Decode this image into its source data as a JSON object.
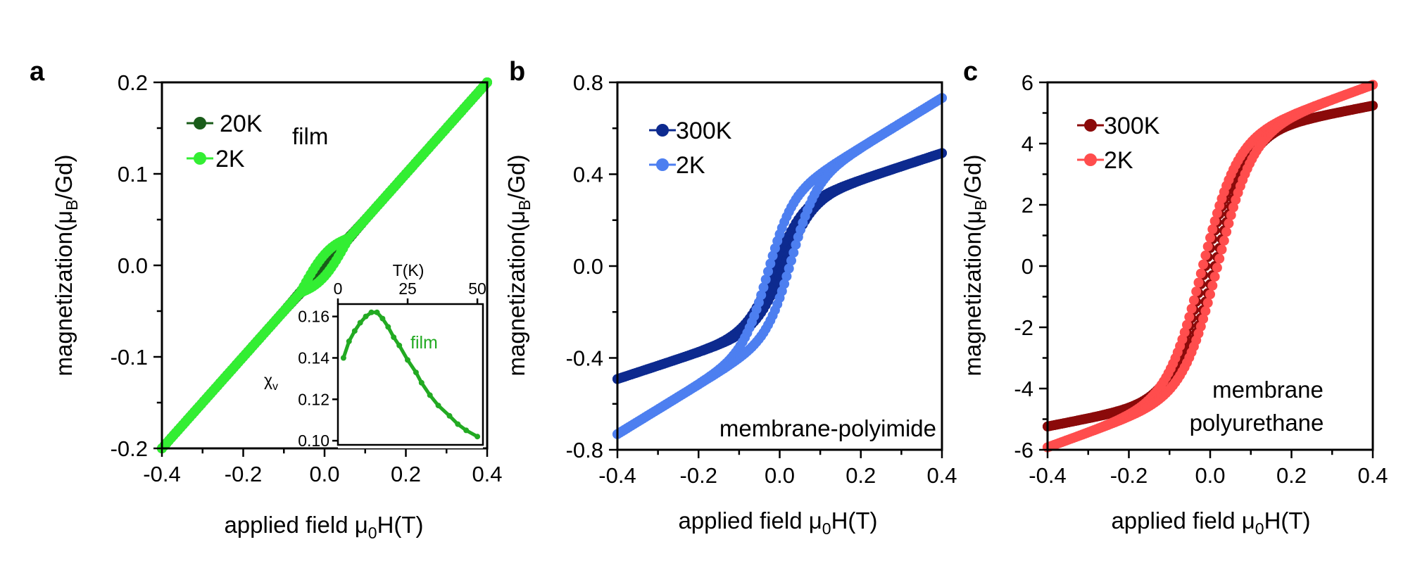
{
  "figure": {
    "panels": [
      "a",
      "b",
      "c"
    ]
  },
  "chart_data": [
    {
      "id": "a",
      "type": "scatter",
      "panel_label": "a",
      "xlabel": "applied field μ0H(T)",
      "ylabel": "magnetization(μB/Gd)",
      "xlim": [
        -0.4,
        0.4
      ],
      "ylim": [
        -0.2,
        0.2
      ],
      "xticks": [
        -0.4,
        -0.2,
        0.0,
        0.2,
        0.4
      ],
      "xtick_labels": [
        "-0.4",
        "-0.2",
        "0.0",
        "0.2",
        "0.4"
      ],
      "yticks": [
        -0.2,
        -0.1,
        0.0,
        0.1,
        0.2
      ],
      "ytick_labels": [
        "-0.2",
        "-0.1",
        "0.0",
        "0.1",
        "0.2"
      ],
      "annotation": "film",
      "legend_position": "top-left",
      "series": [
        {
          "name": "20K",
          "color": "#1a5c1a",
          "kind": "linear",
          "slope": 0.5,
          "hys_coercive": 0.0,
          "loop_offset": 0.003,
          "x": [
            -0.4,
            -0.3,
            -0.2,
            -0.1,
            0.0,
            0.1,
            0.2,
            0.3,
            0.4
          ],
          "y": [
            -0.2,
            -0.15,
            -0.1,
            -0.05,
            0.0,
            0.05,
            0.1,
            0.15,
            0.2
          ]
        },
        {
          "name": "2K",
          "color": "#33ee33",
          "kind": "linear",
          "slope": 0.5,
          "hys_coercive": 0.04,
          "loop_offset": 0.0,
          "x": [
            -0.4,
            -0.3,
            -0.2,
            -0.1,
            0.0,
            0.1,
            0.2,
            0.3,
            0.4
          ],
          "y": [
            -0.2,
            -0.15,
            -0.1,
            -0.05,
            0.0,
            0.05,
            0.1,
            0.15,
            0.2
          ]
        }
      ],
      "inset": {
        "type": "line",
        "xlabel": "T(K)",
        "ylabel": "χv",
        "annotation": "film",
        "color": "#22aa22",
        "xlim": [
          0,
          52
        ],
        "ylim": [
          0.098,
          0.166
        ],
        "xticks": [
          0,
          25,
          50
        ],
        "xtick_labels": [
          "0",
          "25",
          "50"
        ],
        "yticks": [
          0.1,
          0.12,
          0.14,
          0.16
        ],
        "ytick_labels": [
          "0.10",
          "0.12",
          "0.14",
          "0.16"
        ],
        "x": [
          2,
          4,
          6,
          8,
          10,
          12,
          14,
          16,
          18,
          20,
          22,
          25,
          28,
          30,
          33,
          36,
          40,
          43,
          46,
          50
        ],
        "y": [
          0.14,
          0.148,
          0.153,
          0.157,
          0.16,
          0.162,
          0.162,
          0.159,
          0.155,
          0.15,
          0.146,
          0.139,
          0.133,
          0.128,
          0.122,
          0.117,
          0.112,
          0.108,
          0.105,
          0.102
        ]
      }
    },
    {
      "id": "b",
      "type": "scatter",
      "panel_label": "b",
      "xlabel": "applied field μ0H(T)",
      "ylabel": "magnetization(μB/Gd)",
      "xlim": [
        -0.4,
        0.4
      ],
      "ylim": [
        -0.8,
        0.8
      ],
      "xticks": [
        -0.4,
        -0.2,
        0.0,
        0.2,
        0.4
      ],
      "xtick_labels": [
        "-0.4",
        "-0.2",
        "0.0",
        "0.2",
        "0.4"
      ],
      "yticks": [
        -0.8,
        -0.4,
        0.0,
        0.4,
        0.8
      ],
      "ytick_labels": [
        "-0.8",
        "-0.4",
        "0.0",
        "0.4",
        "0.8"
      ],
      "annotation": "membrane-polyimide",
      "legend_position": "top-left",
      "series": [
        {
          "name": "300K",
          "color": "#0d2a8f",
          "kind": "tanh",
          "Ms": 0.26,
          "H0": 0.07,
          "chi": 0.58,
          "hys_coercive": 0.012,
          "x": [
            -0.4,
            -0.2,
            0.0,
            0.2,
            0.4
          ],
          "y": [
            -0.49,
            -0.36,
            0.0,
            0.36,
            0.49
          ]
        },
        {
          "name": "2K",
          "color": "#4d7ff0",
          "kind": "tanh",
          "Ms": 0.3,
          "H0": 0.06,
          "chi": 1.08,
          "hys_coercive": 0.03,
          "x": [
            -0.4,
            -0.2,
            0.0,
            0.2,
            0.4
          ],
          "y": [
            -0.74,
            -0.52,
            0.0,
            0.52,
            0.74
          ]
        }
      ]
    },
    {
      "id": "c",
      "type": "scatter",
      "panel_label": "c",
      "xlabel": "applied field μ0H(T)",
      "ylabel": "magnetization(μB/Gd)",
      "xlim": [
        -0.4,
        0.4
      ],
      "ylim": [
        -6,
        6
      ],
      "xticks": [
        -0.4,
        -0.2,
        0.0,
        0.2,
        0.4
      ],
      "xtick_labels": [
        "-0.4",
        "-0.2",
        "0.0",
        "0.2",
        "0.4"
      ],
      "yticks": [
        -6,
        -4,
        -2,
        0,
        2,
        4,
        6
      ],
      "ytick_labels": [
        "-6",
        "-4",
        "-2",
        "0",
        "2",
        "4",
        "6"
      ],
      "annotation_lines": [
        "membrane",
        "polyurethane"
      ],
      "legend_position": "top-left",
      "series": [
        {
          "name": "300K",
          "color": "#8b0a0a",
          "kind": "tanh",
          "Ms": 4.2,
          "H0": 0.085,
          "chi": 2.6,
          "hys_coercive": 0.012,
          "x": [
            -0.4,
            -0.2,
            0.0,
            0.2,
            0.4
          ],
          "y": [
            -5.25,
            -4.6,
            0.0,
            4.6,
            5.25
          ]
        },
        {
          "name": "2K",
          "color": "#ff4d4d",
          "kind": "tanh",
          "Ms": 4.0,
          "H0": 0.085,
          "chi": 4.8,
          "hys_coercive": 0.02,
          "x": [
            -0.4,
            -0.2,
            0.0,
            0.2,
            0.4
          ],
          "y": [
            -5.9,
            -4.7,
            0.0,
            4.7,
            5.9
          ]
        }
      ]
    }
  ]
}
